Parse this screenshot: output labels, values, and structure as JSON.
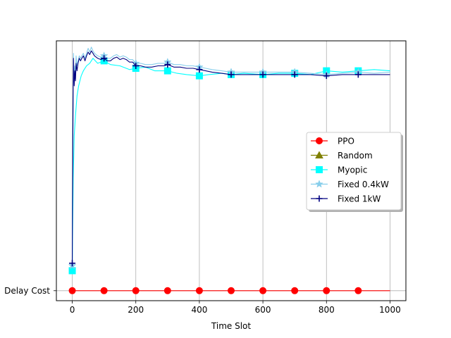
{
  "chart_data": {
    "type": "line",
    "xlabel": "Time Slot",
    "ylabel": "",
    "xlim": [
      -50,
      1050
    ],
    "ylim": [
      -0.04,
      1.0
    ],
    "x_ticks": [
      0,
      200,
      400,
      600,
      800,
      1000
    ],
    "x_tick_labels": [
      "0",
      "200",
      "400",
      "600",
      "800",
      "1000"
    ],
    "y_ticks": [
      0
    ],
    "y_tick_labels": [
      "Delay Cost"
    ],
    "grid": "x",
    "legend_position": "center-right",
    "series": [
      {
        "name": "PPO",
        "color": "#ff0000",
        "marker": "circle",
        "x": [
          0,
          1000
        ],
        "y": [
          0,
          0
        ],
        "marker_x": [
          0,
          100,
          200,
          300,
          400,
          500,
          600,
          700,
          800,
          900
        ]
      },
      {
        "name": "Random",
        "color": "#808000",
        "marker": "triangle",
        "x": [],
        "y": [],
        "marker_x": []
      },
      {
        "name": "Myopic",
        "color": "#00ffff",
        "marker": "square",
        "x": [
          0,
          3,
          6,
          10,
          15,
          20,
          28,
          35,
          45,
          55,
          65,
          80,
          100,
          120,
          150,
          180,
          200,
          230,
          260,
          300,
          330,
          360,
          400,
          430,
          470,
          500,
          540,
          600,
          650,
          700,
          750,
          800,
          850,
          900,
          950,
          1000
        ],
        "y": [
          0.08,
          0.45,
          0.62,
          0.7,
          0.78,
          0.82,
          0.86,
          0.88,
          0.9,
          0.91,
          0.93,
          0.91,
          0.92,
          0.905,
          0.9,
          0.885,
          0.89,
          0.895,
          0.88,
          0.88,
          0.87,
          0.865,
          0.86,
          0.865,
          0.87,
          0.865,
          0.87,
          0.865,
          0.87,
          0.87,
          0.865,
          0.88,
          0.875,
          0.88,
          0.885,
          0.88
        ],
        "marker_x": [
          0,
          100,
          200,
          300,
          400,
          500,
          600,
          700,
          800,
          900
        ]
      },
      {
        "name": "Fixed 0.4kW",
        "color": "#87ceeb",
        "marker": "star",
        "x": [
          0,
          2,
          4,
          6,
          8,
          10,
          12,
          15,
          18,
          22,
          26,
          30,
          35,
          40,
          45,
          50,
          55,
          60,
          65,
          70,
          80,
          90,
          100,
          110,
          120,
          130,
          140,
          150,
          160,
          170,
          180,
          190,
          200,
          215,
          230,
          250,
          270,
          290,
          300,
          320,
          340,
          360,
          380,
          400,
          420,
          440,
          470,
          500,
          540,
          580,
          620,
          660,
          700,
          750,
          800,
          850,
          900,
          950,
          1000
        ],
        "y": [
          0.1,
          0.68,
          0.95,
          0.84,
          0.9,
          0.86,
          0.94,
          0.9,
          0.92,
          0.94,
          0.93,
          0.94,
          0.95,
          0.93,
          0.95,
          0.97,
          0.955,
          0.975,
          0.96,
          0.95,
          0.94,
          0.935,
          0.94,
          0.93,
          0.93,
          0.94,
          0.945,
          0.935,
          0.94,
          0.935,
          0.925,
          0.925,
          0.91,
          0.91,
          0.905,
          0.905,
          0.91,
          0.91,
          0.915,
          0.905,
          0.905,
          0.9,
          0.9,
          0.895,
          0.89,
          0.885,
          0.88,
          0.875,
          0.875,
          0.875,
          0.875,
          0.875,
          0.875,
          0.87,
          0.865,
          0.87,
          0.875,
          0.87,
          0.875
        ],
        "marker_x": [
          0,
          100,
          200,
          300,
          400,
          500,
          600,
          700,
          800,
          900
        ]
      },
      {
        "name": "Fixed 1kW",
        "color": "#000080",
        "marker": "plus",
        "x": [
          0,
          2,
          4,
          6,
          8,
          10,
          12,
          15,
          18,
          22,
          26,
          30,
          35,
          40,
          45,
          50,
          55,
          60,
          65,
          70,
          80,
          90,
          100,
          110,
          120,
          130,
          140,
          150,
          160,
          170,
          180,
          190,
          200,
          215,
          230,
          250,
          270,
          290,
          300,
          320,
          340,
          360,
          380,
          400,
          420,
          440,
          470,
          500,
          540,
          580,
          620,
          660,
          700,
          750,
          800,
          850,
          900,
          950,
          1000
        ],
        "y": [
          0.11,
          0.62,
          0.93,
          0.82,
          0.88,
          0.84,
          0.91,
          0.88,
          0.91,
          0.93,
          0.92,
          0.93,
          0.94,
          0.92,
          0.94,
          0.955,
          0.945,
          0.96,
          0.95,
          0.94,
          0.93,
          0.925,
          0.93,
          0.92,
          0.92,
          0.93,
          0.935,
          0.925,
          0.93,
          0.925,
          0.915,
          0.915,
          0.9,
          0.9,
          0.895,
          0.895,
          0.9,
          0.9,
          0.905,
          0.895,
          0.895,
          0.89,
          0.89,
          0.885,
          0.88,
          0.875,
          0.87,
          0.865,
          0.865,
          0.865,
          0.865,
          0.865,
          0.865,
          0.865,
          0.86,
          0.865,
          0.865,
          0.865,
          0.865
        ],
        "marker_x": [
          0,
          100,
          200,
          300,
          400,
          500,
          600,
          700,
          800,
          900
        ]
      }
    ]
  }
}
